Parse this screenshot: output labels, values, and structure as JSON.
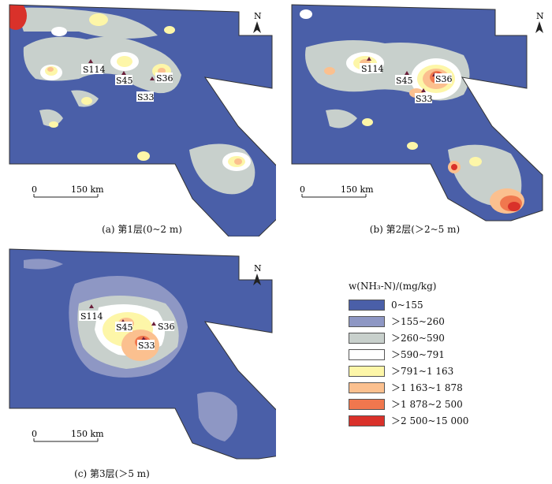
{
  "panels": [
    {
      "id": "a",
      "caption": "(a)  第1层(0~2 m)",
      "scale_label": "150 km",
      "scale_zero": "0",
      "north": "N",
      "sites": [
        "S114",
        "S45",
        "S36",
        "S33"
      ]
    },
    {
      "id": "b",
      "caption": "(b)  第2层(＞2~5 m)",
      "scale_label": "150 km",
      "scale_zero": "0",
      "north": "N",
      "sites": [
        "S114",
        "S45",
        "S36",
        "S33"
      ]
    },
    {
      "id": "c",
      "caption": "(c)  第3层(＞5 m)",
      "scale_label": "150 km",
      "scale_zero": "0",
      "north": "N",
      "sites": [
        "S114",
        "S45",
        "S36",
        "S33"
      ]
    }
  ],
  "legend": {
    "title": "w(NH₃-N)/(mg/kg)",
    "items": [
      {
        "label": "0~155",
        "color": "#4a5fa8"
      },
      {
        "label": "＞155~260",
        "color": "#8e97c4"
      },
      {
        "label": "＞260~590",
        "color": "#c8d0cc"
      },
      {
        "label": "＞590~791",
        "color": "#ffffff"
      },
      {
        "label": "＞791~1 163",
        "color": "#fdf6a8"
      },
      {
        "label": "＞1 163~1 878",
        "color": "#fbc08f"
      },
      {
        "label": "＞1 878~2 500",
        "color": "#f0774e"
      },
      {
        "label": "＞2 500~15 000",
        "color": "#d9312a"
      }
    ]
  }
}
